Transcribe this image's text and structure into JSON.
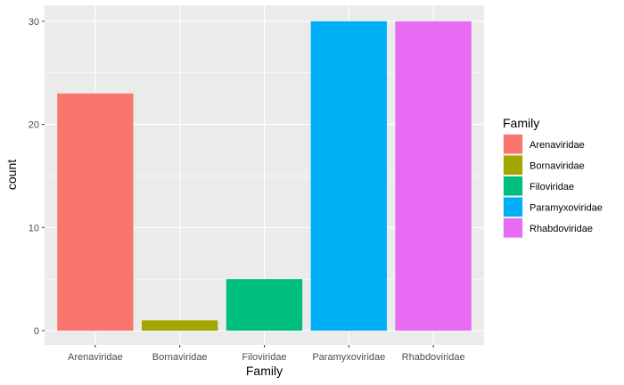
{
  "chart_data": {
    "type": "bar",
    "title": "",
    "xlabel": "Family",
    "ylabel": "count",
    "categories": [
      "Arenaviridae",
      "Bornaviridae",
      "Filoviridae",
      "Paramyxoviridae",
      "Rhabdoviridae"
    ],
    "values": [
      23,
      1,
      5,
      30,
      30
    ],
    "colors": [
      "#F8766D",
      "#A3A500",
      "#00BF7D",
      "#00B0F6",
      "#E76BF3"
    ],
    "ylim": [
      0,
      31.5
    ],
    "yticks": [
      0,
      10,
      20,
      30
    ],
    "ytick_labels": [
      "0",
      "10",
      "20",
      "30"
    ],
    "grid": true,
    "panel_background": "#EBEBEB",
    "legend": {
      "title": "Family",
      "position": "right",
      "entries": [
        "Arenaviridae",
        "Bornaviridae",
        "Filoviridae",
        "Paramyxoviridae",
        "Rhabdoviridae"
      ]
    }
  }
}
